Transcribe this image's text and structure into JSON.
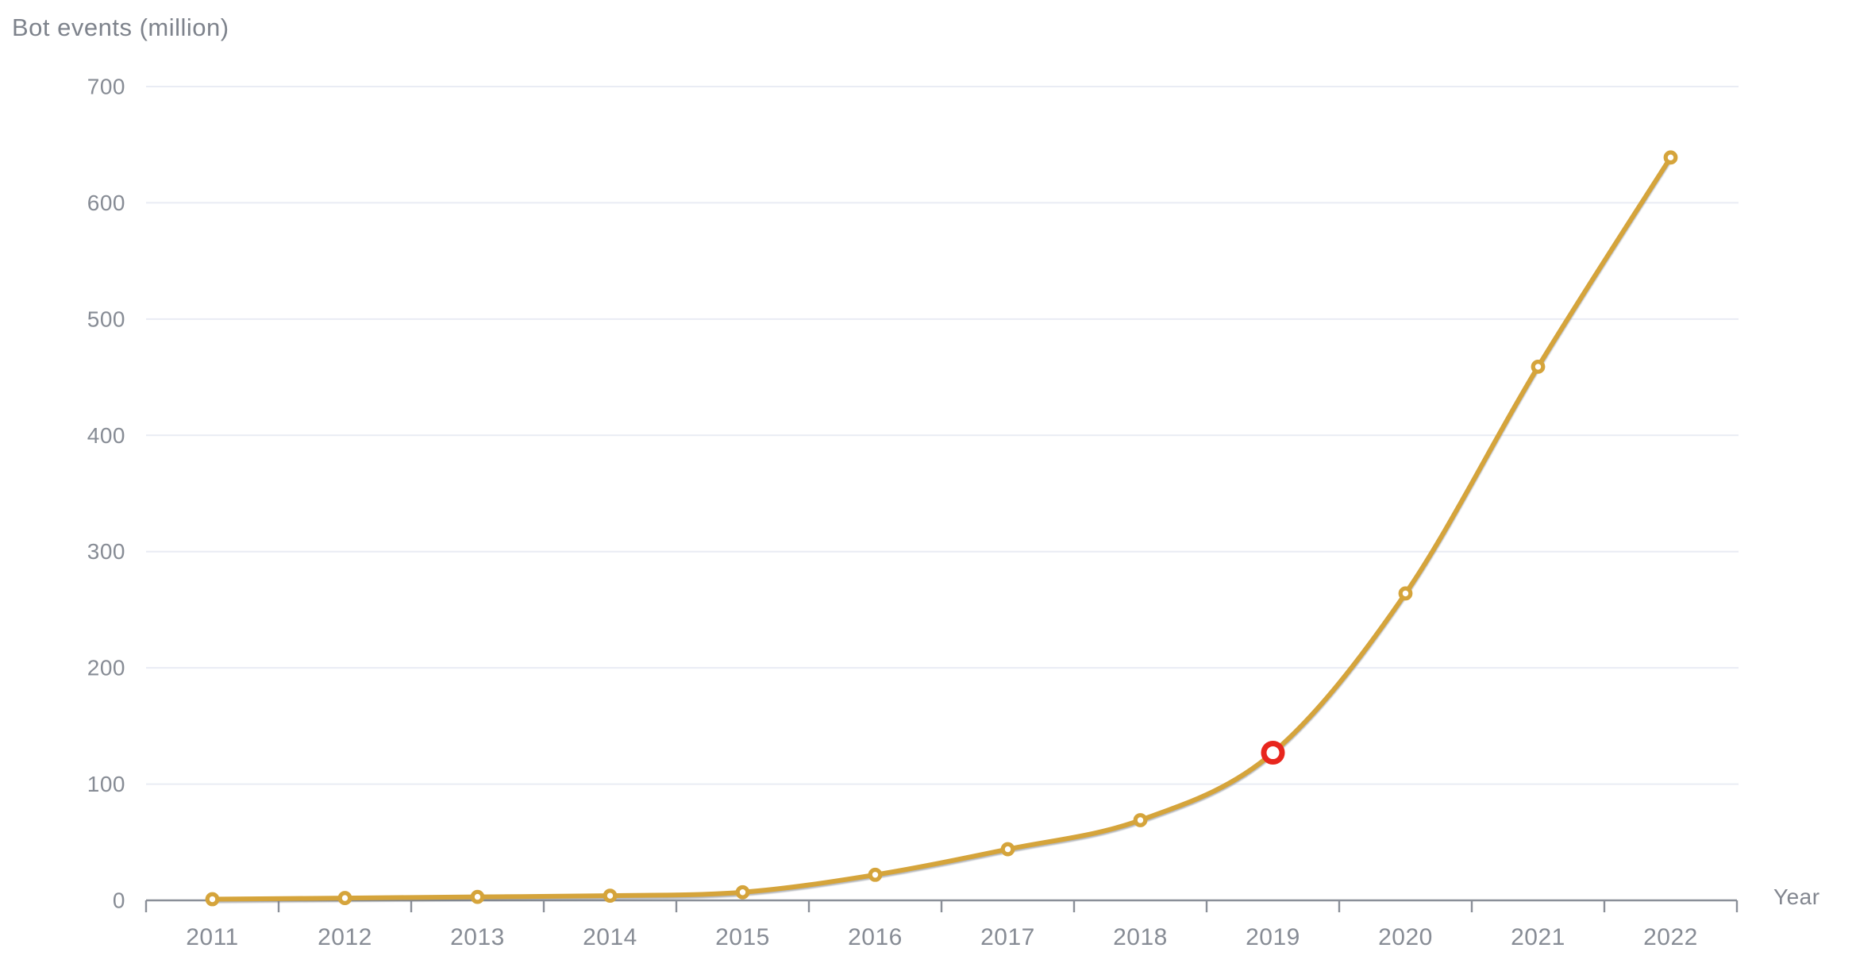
{
  "chart_data": {
    "type": "line",
    "title": "Bot events (million)",
    "xlabel": "Year",
    "ylabel": "Bot events (million)",
    "categories": [
      "2011",
      "2012",
      "2013",
      "2014",
      "2015",
      "2016",
      "2017",
      "2018",
      "2019",
      "2020",
      "2021",
      "2022"
    ],
    "series": [
      {
        "name": "Bot events",
        "values": [
          1,
          2,
          3,
          4,
          7,
          22,
          44,
          69,
          127,
          264,
          459,
          639
        ]
      }
    ],
    "highlight": {
      "category": "2019",
      "index": 8,
      "value": 127,
      "style": "red-ring"
    },
    "ylim": [
      0,
      700
    ],
    "yticks": [
      0,
      100,
      200,
      300,
      400,
      500,
      600,
      700
    ],
    "grid": "horizontal",
    "legend_position": "none",
    "colors": {
      "line": "#d5a43b",
      "marker_ring": "#d5a43b",
      "marker_fill": "#ffffff",
      "highlight_ring": "#e8261d",
      "highlight_fill": "#ffffff",
      "gridline": "#e9ecf4",
      "axis_line": "#8a8f98",
      "tick_label": "#878c95",
      "title_text": "#7e838c"
    }
  }
}
